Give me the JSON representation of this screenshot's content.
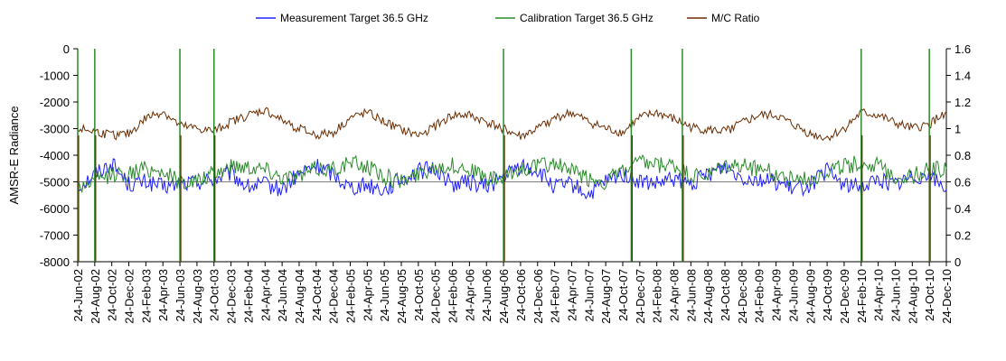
{
  "chart_data": {
    "type": "line",
    "title": "",
    "ylabel": "AMSR-E Radiance",
    "y2label": "",
    "ylim": [
      -8000,
      0
    ],
    "y2lim": [
      0,
      1.6
    ],
    "y_ticks": [
      "0",
      "-1000",
      "-2000",
      "-3000",
      "-4000",
      "-5000",
      "-6000",
      "-7000",
      "-8000"
    ],
    "y2_ticks": [
      "1.6",
      "1.4",
      "1.2",
      "1",
      "0.8",
      "0.6",
      "0.4",
      "0.2",
      "0"
    ],
    "x_tick_labels": [
      "24-Jun-02",
      "24-Aug-02",
      "24-Oct-02",
      "24-Dec-02",
      "24-Feb-03",
      "24-Apr-03",
      "24-Jun-03",
      "24-Aug-03",
      "24-Oct-03",
      "24-Dec-03",
      "24-Feb-04",
      "24-Apr-04",
      "24-Jun-04",
      "24-Aug-04",
      "24-Oct-04",
      "24-Dec-04",
      "24-Feb-05",
      "24-Apr-05",
      "24-Jun-05",
      "24-Aug-05",
      "24-Oct-05",
      "24-Dec-05",
      "24-Feb-06",
      "24-Apr-06",
      "24-Jun-06",
      "24-Aug-06",
      "24-Oct-06",
      "24-Dec-06",
      "24-Feb-07",
      "24-Apr-07",
      "24-Jun-07",
      "24-Aug-07",
      "24-Oct-07",
      "24-Dec-07",
      "24-Feb-08",
      "24-Apr-08",
      "24-Jun-08",
      "24-Aug-08",
      "24-Oct-08",
      "24-Dec-08",
      "24-Feb-09",
      "24-Apr-09",
      "24-Jun-09",
      "24-Aug-09",
      "24-Oct-09",
      "24-Dec-09",
      "24-Feb-10",
      "24-Apr-10",
      "24-Jun-10",
      "24-Aug-10",
      "24-Oct-10",
      "24-Dec-10"
    ],
    "grid": "horizontal-at-minus-5000",
    "legend_position": "top-center",
    "series": [
      {
        "name": "Measurement Target 36.5 GHz",
        "axis": "left",
        "color": "#2020ff",
        "x": [
          "24-Jun-02",
          "24-Aug-02",
          "24-Oct-02",
          "24-Dec-02",
          "24-Feb-03",
          "24-Apr-03",
          "24-Jun-03",
          "24-Aug-03",
          "24-Oct-03",
          "24-Dec-03",
          "24-Feb-04",
          "24-Apr-04",
          "24-Jun-04",
          "24-Aug-04",
          "24-Oct-04",
          "24-Dec-04",
          "24-Feb-05",
          "24-Apr-05",
          "24-Jun-05",
          "24-Aug-05",
          "24-Oct-05",
          "24-Dec-05",
          "24-Feb-06",
          "24-Apr-06",
          "24-Jun-06",
          "24-Aug-06",
          "24-Oct-06",
          "24-Dec-06",
          "24-Feb-07",
          "24-Apr-07",
          "24-Jun-07",
          "24-Aug-07",
          "24-Oct-07",
          "24-Dec-07",
          "24-Feb-08",
          "24-Apr-08",
          "24-Jun-08",
          "24-Aug-08",
          "24-Oct-08",
          "24-Dec-08",
          "24-Feb-09",
          "24-Apr-09",
          "24-Jun-09",
          "24-Aug-09",
          "24-Oct-09",
          "24-Dec-09",
          "24-Feb-10",
          "24-Apr-10",
          "24-Jun-10",
          "24-Aug-10",
          "24-Oct-10",
          "24-Dec-10"
        ],
        "values": [
          -5200,
          -4700,
          -4300,
          -5100,
          -5000,
          -5200,
          -5100,
          -5000,
          -4900,
          -4700,
          -5200,
          -5100,
          -5300,
          -4700,
          -4400,
          -4700,
          -5200,
          -5100,
          -5300,
          -4900,
          -4600,
          -4500,
          -5100,
          -5000,
          -5200,
          -4800,
          -4400,
          -4600,
          -5200,
          -5100,
          -5500,
          -5000,
          -4700,
          -5000,
          -5100,
          -4900,
          -5100,
          -4700,
          -4400,
          -4800,
          -4900,
          -5000,
          -5300,
          -5100,
          -4600,
          -5100,
          -5200,
          -4900,
          -5100,
          -4800,
          -4700,
          -5300
        ]
      },
      {
        "name": "Calibration Target 36.5 GHz",
        "axis": "left",
        "color": "#2a8a2a",
        "x": [
          "24-Jun-02",
          "24-Aug-02",
          "24-Oct-02",
          "24-Dec-02",
          "24-Feb-03",
          "24-Apr-03",
          "24-Jun-03",
          "24-Aug-03",
          "24-Oct-03",
          "24-Dec-03",
          "24-Feb-04",
          "24-Apr-04",
          "24-Jun-04",
          "24-Aug-04",
          "24-Oct-04",
          "24-Dec-04",
          "24-Feb-05",
          "24-Apr-05",
          "24-Jun-05",
          "24-Aug-05",
          "24-Oct-05",
          "24-Dec-05",
          "24-Feb-06",
          "24-Apr-06",
          "24-Jun-06",
          "24-Aug-06",
          "24-Oct-06",
          "24-Dec-06",
          "24-Feb-07",
          "24-Apr-07",
          "24-Jun-07",
          "24-Aug-07",
          "24-Oct-07",
          "24-Dec-07",
          "24-Feb-08",
          "24-Apr-08",
          "24-Jun-08",
          "24-Aug-08",
          "24-Oct-08",
          "24-Dec-08",
          "24-Feb-09",
          "24-Apr-09",
          "24-Jun-09",
          "24-Aug-09",
          "24-Oct-09",
          "24-Dec-09",
          "24-Feb-10",
          "24-Apr-10",
          "24-Jun-10",
          "24-Aug-10",
          "24-Oct-10",
          "24-Dec-10"
        ],
        "values": [
          -5200,
          -5000,
          -4700,
          -4700,
          -4500,
          -4600,
          -5000,
          -5000,
          -4700,
          -4400,
          -4400,
          -4500,
          -4800,
          -4800,
          -4500,
          -4500,
          -4300,
          -4400,
          -4800,
          -5000,
          -4700,
          -4400,
          -4400,
          -4500,
          -4900,
          -4900,
          -4500,
          -4400,
          -4300,
          -4600,
          -4900,
          -5000,
          -4600,
          -4300,
          -4400,
          -4400,
          -4800,
          -4800,
          -4400,
          -4400,
          -4500,
          -4700,
          -4900,
          -4900,
          -4600,
          -4400,
          -4300,
          -4400,
          -4800,
          -4800,
          -4500,
          -4500
        ]
      },
      {
        "name": "M/C Ratio",
        "axis": "right",
        "color": "#6b2c00",
        "x": [
          "24-Jun-02",
          "24-Aug-02",
          "24-Oct-02",
          "24-Dec-02",
          "24-Feb-03",
          "24-Apr-03",
          "24-Jun-03",
          "24-Aug-03",
          "24-Oct-03",
          "24-Dec-03",
          "24-Feb-04",
          "24-Apr-04",
          "24-Jun-04",
          "24-Aug-04",
          "24-Oct-04",
          "24-Dec-04",
          "24-Feb-05",
          "24-Apr-05",
          "24-Jun-05",
          "24-Aug-05",
          "24-Oct-05",
          "24-Dec-05",
          "24-Feb-06",
          "24-Apr-06",
          "24-Jun-06",
          "24-Aug-06",
          "24-Oct-06",
          "24-Dec-06",
          "24-Feb-07",
          "24-Apr-07",
          "24-Jun-07",
          "24-Aug-07",
          "24-Oct-07",
          "24-Dec-07",
          "24-Feb-08",
          "24-Apr-08",
          "24-Jun-08",
          "24-Aug-08",
          "24-Oct-08",
          "24-Dec-08",
          "24-Feb-09",
          "24-Apr-09",
          "24-Jun-09",
          "24-Aug-09",
          "24-Oct-09",
          "24-Dec-09",
          "24-Feb-10",
          "24-Apr-10",
          "24-Jun-10",
          "24-Aug-10",
          "24-Oct-10",
          "24-Dec-10"
        ],
        "values": [
          1.0,
          0.98,
          0.95,
          0.96,
          1.08,
          1.13,
          1.02,
          1.0,
          0.98,
          1.05,
          1.1,
          1.14,
          1.06,
          1.0,
          0.95,
          0.97,
          1.08,
          1.12,
          1.05,
          0.99,
          0.95,
          1.02,
          1.1,
          1.1,
          1.05,
          1.0,
          0.94,
          1.0,
          1.08,
          1.12,
          1.05,
          1.0,
          0.97,
          1.08,
          1.12,
          1.07,
          1.01,
          0.99,
          0.98,
          1.04,
          1.1,
          1.1,
          1.03,
          0.96,
          0.93,
          1.0,
          1.12,
          1.1,
          1.04,
          1.0,
          1.03,
          1.13
        ]
      }
    ],
    "spikes": [
      {
        "series": "Calibration Target 36.5 GHz",
        "x": "24-Jun-02",
        "from": -8000,
        "to": 0
      },
      {
        "series": "Calibration Target 36.5 GHz",
        "x": "24-Aug-02",
        "from": -8000,
        "to": 0
      },
      {
        "series": "Calibration Target 36.5 GHz",
        "x": "24-Jun-03",
        "from": -8000,
        "to": 0
      },
      {
        "series": "Calibration Target 36.5 GHz",
        "x": "24-Oct-03",
        "from": -8000,
        "to": 0
      },
      {
        "series": "Calibration Target 36.5 GHz",
        "x": "24-Aug-06",
        "from": -8000,
        "to": 0
      },
      {
        "series": "Calibration Target 36.5 GHz",
        "x": "24-Nov-07",
        "from": -8000,
        "to": 0
      },
      {
        "series": "Calibration Target 36.5 GHz",
        "x": "24-May-08",
        "from": -8000,
        "to": 0
      },
      {
        "series": "Calibration Target 36.5 GHz",
        "x": "24-Feb-10",
        "from": -8000,
        "to": 0
      },
      {
        "series": "Calibration Target 36.5 GHz",
        "x": "24-Oct-10",
        "from": -8000,
        "to": 0
      }
    ]
  }
}
